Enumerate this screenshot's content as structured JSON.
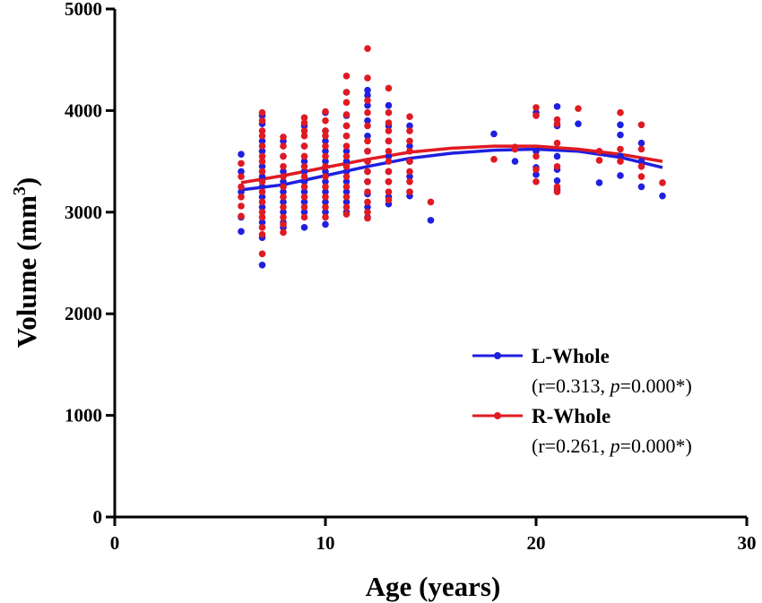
{
  "chart_data": {
    "type": "scatter",
    "title": "",
    "xlabel": "Age (years)",
    "ylabel": {
      "base": "Volume (mm",
      "sup": "3",
      "close": ")"
    },
    "xlim": [
      0,
      30
    ],
    "ylim": [
      0,
      5000
    ],
    "xticks": [
      0,
      10,
      20,
      30
    ],
    "xtick_labels": [
      "0",
      "10",
      "20",
      "30"
    ],
    "yticks": [
      0,
      1000,
      2000,
      3000,
      4000,
      5000
    ],
    "ytick_labels": [
      "0",
      "1000",
      "2000",
      "3000",
      "4000",
      "5000"
    ],
    "legend_position": "right-middle",
    "series": [
      {
        "name": "L-Whole",
        "color": "#1f1fe0",
        "stats": {
          "open": "(r=0.313, ",
          "p_symbol": "p",
          "rest": "=0.000*)"
        },
        "trend": [
          [
            6,
            3220
          ],
          [
            8,
            3270
          ],
          [
            10,
            3360
          ],
          [
            12,
            3450
          ],
          [
            14,
            3530
          ],
          [
            16,
            3580
          ],
          [
            18,
            3610
          ],
          [
            20,
            3620
          ],
          [
            22,
            3600
          ],
          [
            24,
            3540
          ],
          [
            26,
            3440
          ]
        ],
        "points": [
          [
            6,
            3570
          ],
          [
            6,
            3400
          ],
          [
            6,
            3200
          ],
          [
            6,
            2950
          ],
          [
            6,
            2810
          ],
          [
            7,
            3950
          ],
          [
            7,
            3870
          ],
          [
            7,
            3700
          ],
          [
            7,
            3600
          ],
          [
            7,
            3450
          ],
          [
            7,
            3350
          ],
          [
            7,
            3250
          ],
          [
            7,
            3150
          ],
          [
            7,
            3050
          ],
          [
            7,
            2900
          ],
          [
            7,
            2750
          ],
          [
            7,
            2480
          ],
          [
            8,
            3700
          ],
          [
            8,
            3550
          ],
          [
            8,
            3400
          ],
          [
            8,
            3300
          ],
          [
            8,
            3200
          ],
          [
            8,
            3100
          ],
          [
            8,
            3000
          ],
          [
            8,
            2900
          ],
          [
            8,
            2850
          ],
          [
            9,
            3850
          ],
          [
            9,
            3650
          ],
          [
            9,
            3500
          ],
          [
            9,
            3400
          ],
          [
            9,
            3300
          ],
          [
            9,
            3200
          ],
          [
            9,
            3100
          ],
          [
            9,
            3000
          ],
          [
            9,
            2850
          ],
          [
            10,
            3980
          ],
          [
            10,
            3800
          ],
          [
            10,
            3700
          ],
          [
            10,
            3600
          ],
          [
            10,
            3500
          ],
          [
            10,
            3400
          ],
          [
            10,
            3300
          ],
          [
            10,
            3200
          ],
          [
            10,
            3100
          ],
          [
            10,
            3000
          ],
          [
            10,
            2880
          ],
          [
            11,
            4180
          ],
          [
            11,
            3950
          ],
          [
            11,
            3850
          ],
          [
            11,
            3750
          ],
          [
            11,
            3600
          ],
          [
            11,
            3500
          ],
          [
            11,
            3400
          ],
          [
            11,
            3300
          ],
          [
            11,
            3200
          ],
          [
            11,
            3100
          ],
          [
            11,
            3000
          ],
          [
            12,
            4200
          ],
          [
            12,
            4150
          ],
          [
            12,
            4050
          ],
          [
            12,
            3900
          ],
          [
            12,
            3750
          ],
          [
            12,
            3600
          ],
          [
            12,
            3500
          ],
          [
            12,
            3400
          ],
          [
            12,
            3300
          ],
          [
            12,
            3180
          ],
          [
            12,
            3050
          ],
          [
            12,
            2950
          ],
          [
            13,
            4050
          ],
          [
            13,
            3850
          ],
          [
            13,
            3700
          ],
          [
            13,
            3550
          ],
          [
            13,
            3400
          ],
          [
            13,
            3300
          ],
          [
            13,
            3150
          ],
          [
            13,
            3080
          ],
          [
            14,
            3850
          ],
          [
            14,
            3650
          ],
          [
            14,
            3500
          ],
          [
            14,
            3350
          ],
          [
            14,
            3200
          ],
          [
            14,
            3160
          ],
          [
            15,
            2920
          ],
          [
            18,
            3770
          ],
          [
            19,
            3500
          ],
          [
            19,
            3620
          ],
          [
            20,
            3980
          ],
          [
            20,
            3600
          ],
          [
            20,
            3440
          ],
          [
            20,
            3370
          ],
          [
            21,
            4040
          ],
          [
            21,
            3850
          ],
          [
            21,
            3550
          ],
          [
            21,
            3420
          ],
          [
            21,
            3310
          ],
          [
            21,
            3220
          ],
          [
            22,
            3870
          ],
          [
            23,
            3290
          ],
          [
            24,
            3860
          ],
          [
            24,
            3760
          ],
          [
            24,
            3550
          ],
          [
            24,
            3360
          ],
          [
            25,
            3680
          ],
          [
            25,
            3500
          ],
          [
            25,
            3250
          ],
          [
            26,
            3160
          ]
        ]
      },
      {
        "name": "R-Whole",
        "color": "#e01a22",
        "stats": {
          "open": "(r=0.261, ",
          "p_symbol": "p",
          "rest": "=0.000*)"
        },
        "trend": [
          [
            6,
            3290
          ],
          [
            8,
            3360
          ],
          [
            10,
            3440
          ],
          [
            12,
            3520
          ],
          [
            14,
            3590
          ],
          [
            16,
            3630
          ],
          [
            18,
            3650
          ],
          [
            20,
            3650
          ],
          [
            22,
            3620
          ],
          [
            24,
            3570
          ],
          [
            26,
            3500
          ]
        ],
        "points": [
          [
            6,
            3480
          ],
          [
            6,
            3350
          ],
          [
            6,
            3250
          ],
          [
            6,
            3150
          ],
          [
            6,
            3060
          ],
          [
            6,
            2960
          ],
          [
            7,
            3980
          ],
          [
            7,
            3900
          ],
          [
            7,
            3800
          ],
          [
            7,
            3750
          ],
          [
            7,
            3650
          ],
          [
            7,
            3550
          ],
          [
            7,
            3500
          ],
          [
            7,
            3400
          ],
          [
            7,
            3300
          ],
          [
            7,
            3200
          ],
          [
            7,
            3100
          ],
          [
            7,
            3000
          ],
          [
            7,
            2950
          ],
          [
            7,
            2850
          ],
          [
            7,
            2780
          ],
          [
            7,
            2590
          ],
          [
            8,
            3740
          ],
          [
            8,
            3650
          ],
          [
            8,
            3550
          ],
          [
            8,
            3450
          ],
          [
            8,
            3350
          ],
          [
            8,
            3250
          ],
          [
            8,
            3150
          ],
          [
            8,
            3050
          ],
          [
            8,
            2950
          ],
          [
            8,
            2880
          ],
          [
            8,
            2800
          ],
          [
            9,
            3930
          ],
          [
            9,
            3880
          ],
          [
            9,
            3800
          ],
          [
            9,
            3750
          ],
          [
            9,
            3650
          ],
          [
            9,
            3550
          ],
          [
            9,
            3450
          ],
          [
            9,
            3350
          ],
          [
            9,
            3250
          ],
          [
            9,
            3150
          ],
          [
            9,
            3050
          ],
          [
            9,
            2950
          ],
          [
            10,
            3990
          ],
          [
            10,
            3900
          ],
          [
            10,
            3800
          ],
          [
            10,
            3750
          ],
          [
            10,
            3650
          ],
          [
            10,
            3550
          ],
          [
            10,
            3450
          ],
          [
            10,
            3350
          ],
          [
            10,
            3250
          ],
          [
            10,
            3150
          ],
          [
            10,
            3050
          ],
          [
            10,
            2950
          ],
          [
            11,
            4340
          ],
          [
            11,
            4180
          ],
          [
            11,
            4080
          ],
          [
            11,
            3960
          ],
          [
            11,
            3850
          ],
          [
            11,
            3750
          ],
          [
            11,
            3650
          ],
          [
            11,
            3550
          ],
          [
            11,
            3450
          ],
          [
            11,
            3350
          ],
          [
            11,
            3250
          ],
          [
            11,
            3150
          ],
          [
            11,
            3050
          ],
          [
            11,
            2980
          ],
          [
            12,
            4610
          ],
          [
            12,
            4320
          ],
          [
            12,
            4100
          ],
          [
            12,
            3980
          ],
          [
            12,
            3850
          ],
          [
            12,
            3700
          ],
          [
            12,
            3600
          ],
          [
            12,
            3500
          ],
          [
            12,
            3400
          ],
          [
            12,
            3300
          ],
          [
            12,
            3200
          ],
          [
            12,
            3100
          ],
          [
            12,
            3000
          ],
          [
            12,
            2940
          ],
          [
            13,
            4220
          ],
          [
            13,
            3980
          ],
          [
            13,
            3880
          ],
          [
            13,
            3800
          ],
          [
            13,
            3700
          ],
          [
            13,
            3600
          ],
          [
            13,
            3500
          ],
          [
            13,
            3400
          ],
          [
            13,
            3300
          ],
          [
            13,
            3200
          ],
          [
            13,
            3120
          ],
          [
            14,
            3940
          ],
          [
            14,
            3800
          ],
          [
            14,
            3700
          ],
          [
            14,
            3600
          ],
          [
            14,
            3500
          ],
          [
            14,
            3400
          ],
          [
            14,
            3300
          ],
          [
            14,
            3200
          ],
          [
            15,
            3100
          ],
          [
            18,
            3520
          ],
          [
            19,
            3620
          ],
          [
            19,
            3640
          ],
          [
            20,
            4030
          ],
          [
            20,
            3950
          ],
          [
            20,
            3550
          ],
          [
            20,
            3420
          ],
          [
            20,
            3300
          ],
          [
            21,
            3910
          ],
          [
            21,
            3870
          ],
          [
            21,
            3680
          ],
          [
            21,
            3450
          ],
          [
            21,
            3250
          ],
          [
            21,
            3200
          ],
          [
            22,
            4020
          ],
          [
            23,
            3600
          ],
          [
            23,
            3510
          ],
          [
            24,
            3980
          ],
          [
            24,
            3620
          ],
          [
            24,
            3500
          ],
          [
            25,
            3860
          ],
          [
            25,
            3620
          ],
          [
            25,
            3450
          ],
          [
            25,
            3350
          ],
          [
            26,
            3290
          ]
        ]
      }
    ]
  }
}
